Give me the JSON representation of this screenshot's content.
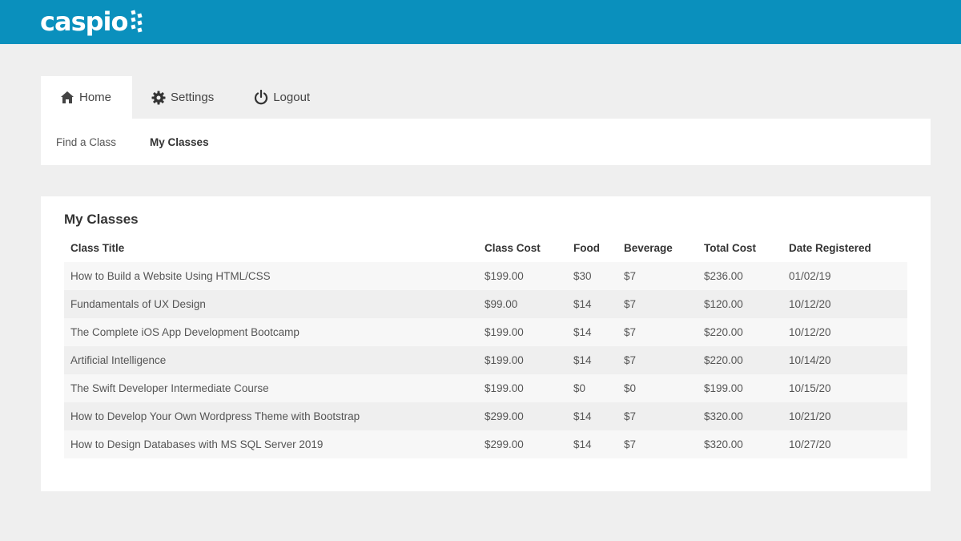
{
  "header": {
    "logo_text": "caspio",
    "brand_color": "#0a90bd"
  },
  "tabs": [
    {
      "label": "Home",
      "icon": "home-icon",
      "active": true
    },
    {
      "label": "Settings",
      "icon": "gear-icon",
      "active": false
    },
    {
      "label": "Logout",
      "icon": "power-icon",
      "active": false
    }
  ],
  "subnav": [
    {
      "label": "Find a Class",
      "current": false
    },
    {
      "label": "My Classes",
      "current": true
    }
  ],
  "main": {
    "title": "My Classes",
    "columns": [
      "Class Title",
      "Class Cost",
      "Food",
      "Beverage",
      "Total Cost",
      "Date Registered"
    ],
    "rows": [
      [
        "How to Build a Website Using HTML/CSS",
        "$199.00",
        "$30",
        "$7",
        "$236.00",
        "01/02/19"
      ],
      [
        "Fundamentals of UX Design",
        "$99.00",
        "$14",
        "$7",
        "$120.00",
        "10/12/20"
      ],
      [
        "The Complete iOS App Development Bootcamp",
        "$199.00",
        "$14",
        "$7",
        "$220.00",
        "10/12/20"
      ],
      [
        "Artificial Intelligence",
        "$199.00",
        "$14",
        "$7",
        "$220.00",
        "10/14/20"
      ],
      [
        "The Swift Developer Intermediate Course",
        "$199.00",
        "$0",
        "$0",
        "$199.00",
        "10/15/20"
      ],
      [
        "How to Develop Your Own Wordpress Theme with Bootstrap",
        "$299.00",
        "$14",
        "$7",
        "$320.00",
        "10/21/20"
      ],
      [
        "How to Design Databases with MS SQL Server 2019",
        "$299.00",
        "$14",
        "$7",
        "$320.00",
        "10/27/20"
      ]
    ]
  }
}
